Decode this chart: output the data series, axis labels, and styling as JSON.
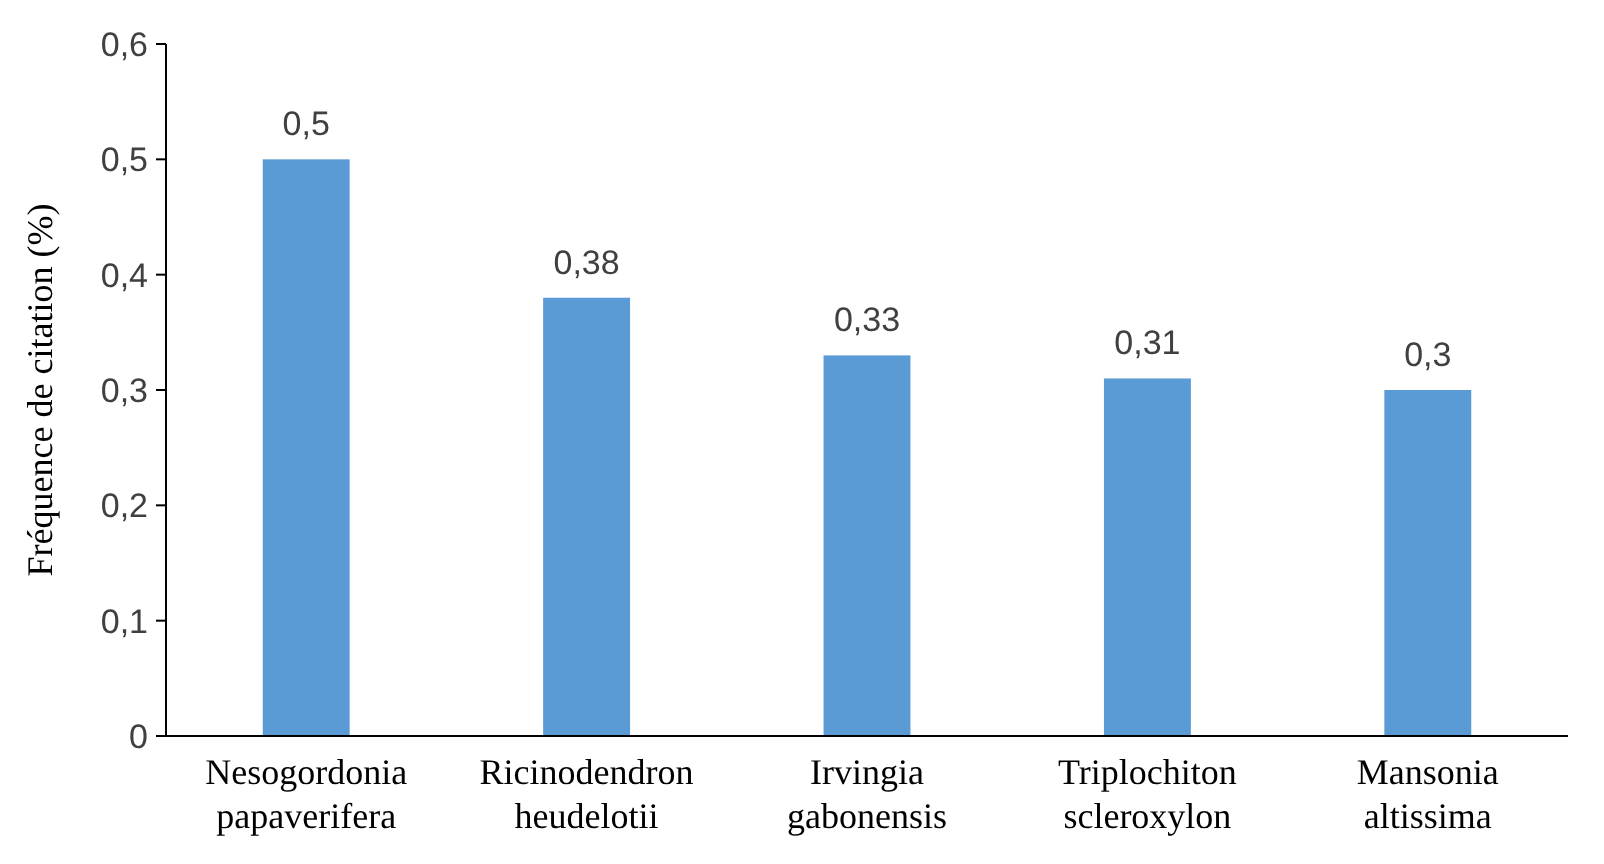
{
  "chart_data": {
    "type": "bar",
    "ylabel": "Fréquence de citation (%)",
    "categories": [
      "Nesogordonia papaverifera",
      "Ricinodendron heudelotii",
      "Irvingia gabonensis",
      "Triplochiton scleroxylon",
      "Mansonia altissima"
    ],
    "values": [
      0.5,
      0.38,
      0.33,
      0.31,
      0.3
    ],
    "value_labels": [
      "0,5",
      "0,38",
      "0,33",
      "0,31",
      "0,3"
    ],
    "color": "#5b9bd5",
    "ylim": [
      0,
      0.6
    ],
    "yticks": [
      {
        "value": 0,
        "label": "0"
      },
      {
        "value": 0.1,
        "label": "0,1"
      },
      {
        "value": 0.2,
        "label": "0,2"
      },
      {
        "value": 0.3,
        "label": "0,3"
      },
      {
        "value": 0.4,
        "label": "0,4"
      },
      {
        "value": 0.5,
        "label": "0,5"
      },
      {
        "value": 0.6,
        "label": "0,6"
      }
    ],
    "grid": false
  }
}
